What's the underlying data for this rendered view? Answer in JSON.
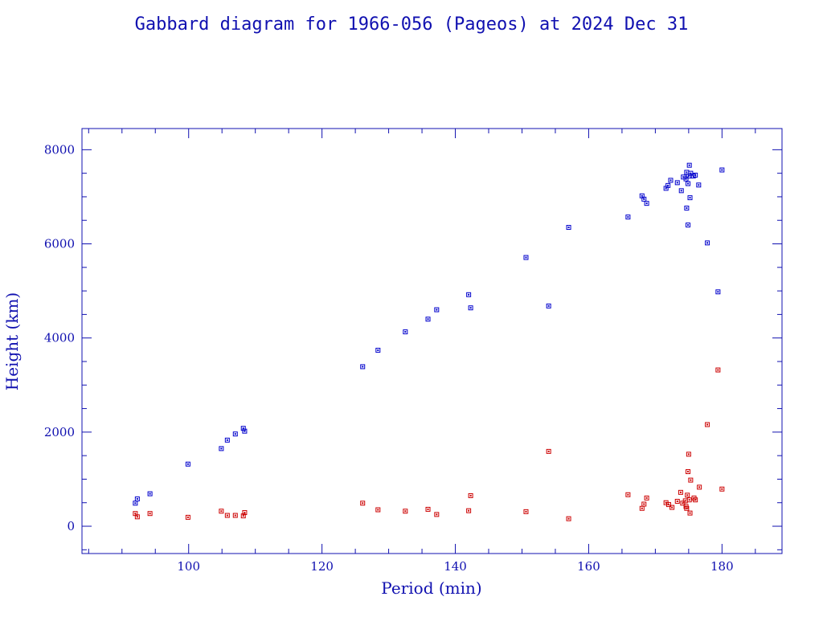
{
  "chart_data": {
    "type": "scatter",
    "title": "Gabbard diagram for 1966-056 (Pageos) at 2024 Dec 31",
    "xlabel": "Period (min)",
    "ylabel": "Height (km)",
    "xlim": [
      84,
      189
    ],
    "ylim": [
      -580,
      8450
    ],
    "x_ticks": [
      100,
      120,
      140,
      160,
      180
    ],
    "y_ticks": [
      0,
      2000,
      4000,
      6000,
      8000
    ],
    "grid": false,
    "series": [
      {
        "color": "#0000cc",
        "points": [
          [
            92.0,
            490
          ],
          [
            92.3,
            580
          ],
          [
            94.2,
            690
          ],
          [
            99.9,
            1320
          ],
          [
            104.9,
            1650
          ],
          [
            105.8,
            1830
          ],
          [
            107.0,
            1960
          ],
          [
            108.2,
            2080
          ],
          [
            108.4,
            2020
          ],
          [
            126.1,
            3390
          ],
          [
            128.4,
            3740
          ],
          [
            132.5,
            4130
          ],
          [
            135.9,
            4400
          ],
          [
            137.2,
            4600
          ],
          [
            142.0,
            4920
          ],
          [
            142.3,
            4640
          ],
          [
            150.6,
            5710
          ],
          [
            154.0,
            4680
          ],
          [
            157.0,
            6350
          ],
          [
            165.9,
            6570
          ],
          [
            168.0,
            7020
          ],
          [
            168.3,
            6950
          ],
          [
            168.7,
            6860
          ],
          [
            171.6,
            7180
          ],
          [
            171.9,
            7240
          ],
          [
            172.3,
            7350
          ],
          [
            173.3,
            7300
          ],
          [
            173.9,
            7130
          ],
          [
            174.2,
            7420
          ],
          [
            174.6,
            7380
          ],
          [
            174.7,
            7520
          ],
          [
            174.9,
            7280
          ],
          [
            175.0,
            7440
          ],
          [
            175.1,
            7670
          ],
          [
            175.3,
            7500
          ],
          [
            175.7,
            7440
          ],
          [
            176.0,
            7460
          ],
          [
            176.5,
            7250
          ],
          [
            174.7,
            6760
          ],
          [
            175.2,
            6980
          ],
          [
            174.9,
            6400
          ],
          [
            177.8,
            6020
          ],
          [
            179.4,
            4980
          ],
          [
            180.0,
            7570
          ]
        ]
      },
      {
        "color": "#cc0000",
        "points": [
          [
            92.0,
            270
          ],
          [
            92.3,
            200
          ],
          [
            94.2,
            270
          ],
          [
            99.9,
            190
          ],
          [
            104.9,
            320
          ],
          [
            105.8,
            230
          ],
          [
            107.0,
            230
          ],
          [
            108.2,
            220
          ],
          [
            108.4,
            290
          ],
          [
            126.1,
            490
          ],
          [
            128.4,
            350
          ],
          [
            132.5,
            320
          ],
          [
            135.9,
            360
          ],
          [
            137.2,
            250
          ],
          [
            142.0,
            330
          ],
          [
            142.3,
            650
          ],
          [
            150.6,
            310
          ],
          [
            154.0,
            1590
          ],
          [
            157.0,
            160
          ],
          [
            165.9,
            670
          ],
          [
            168.0,
            380
          ],
          [
            168.3,
            470
          ],
          [
            168.7,
            600
          ],
          [
            171.6,
            500
          ],
          [
            172.0,
            460
          ],
          [
            172.5,
            400
          ],
          [
            173.3,
            530
          ],
          [
            173.8,
            720
          ],
          [
            174.1,
            490
          ],
          [
            174.5,
            540
          ],
          [
            174.6,
            420
          ],
          [
            174.8,
            660
          ],
          [
            174.9,
            1160
          ],
          [
            175.0,
            1530
          ],
          [
            175.1,
            560
          ],
          [
            175.2,
            280
          ],
          [
            175.3,
            980
          ],
          [
            175.8,
            600
          ],
          [
            176.0,
            560
          ],
          [
            176.6,
            830
          ],
          [
            177.8,
            2160
          ],
          [
            179.4,
            3320
          ],
          [
            180.0,
            790
          ],
          [
            174.7,
            380
          ]
        ]
      }
    ]
  }
}
